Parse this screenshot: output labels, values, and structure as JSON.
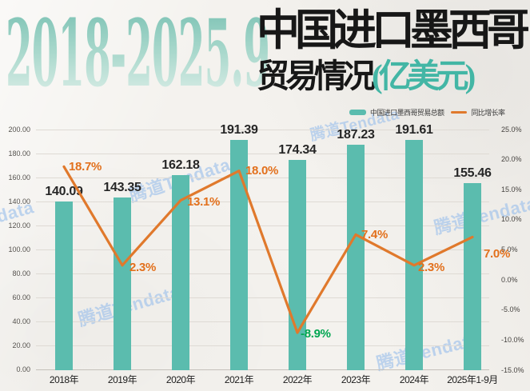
{
  "title": {
    "years": "2018-2025.9",
    "main": "中国进口墨西哥",
    "sub": "贸易情况",
    "unit": "(亿美元)"
  },
  "legend": {
    "bar_label": "中国进口墨西哥贸易总额",
    "line_label": "同比增长率"
  },
  "watermark": {
    "text": "腾道Tendata"
  },
  "colors": {
    "bar": "#5bbcae",
    "line": "#e0792c",
    "pct_label": "#e2701c",
    "pct_negative": "#00a651",
    "title_unit": "#43b6a5",
    "watermark": "#9fc2ec",
    "gridline": "#dedad4",
    "axis_line": "#c4c0ba"
  },
  "chart_data": {
    "type": "bar+line combo",
    "title": "2018-2025.9 中国进口墨西哥贸易情况(亿美元)",
    "categories": [
      "2018年",
      "2019年",
      "2020年",
      "2021年",
      "2022年",
      "2023年",
      "2024年",
      "2025年1-9月"
    ],
    "series": [
      {
        "name": "中国进口墨西哥贸易总额",
        "type": "bar",
        "values": [
          140.09,
          143.35,
          162.18,
          191.39,
          174.34,
          187.23,
          191.61,
          155.46
        ],
        "labels": [
          "140.09",
          "143.35",
          "162.18",
          "191.39",
          "174.34",
          "187.23",
          "191.61",
          "155.46"
        ]
      },
      {
        "name": "同比增长率",
        "type": "line",
        "values": [
          18.7,
          2.3,
          13.1,
          18.0,
          -8.9,
          7.4,
          2.3,
          7.0
        ],
        "labels": [
          "18.7%",
          "2.3%",
          "13.1%",
          "18.0%",
          "-8.9%",
          "7.4%",
          "2.3%",
          "7.0%"
        ]
      }
    ],
    "left_axis": {
      "range": [
        0,
        200
      ],
      "ticks": [
        "200.00",
        "180.00",
        "160.00",
        "140.00",
        "120.00",
        "100.00",
        "80.00",
        "60.00",
        "40.00",
        "20.00",
        "0.00"
      ]
    },
    "right_axis": {
      "range": [
        -15,
        25
      ],
      "ticks": [
        "25.0%",
        "20.0%",
        "15.0%",
        "10.0%",
        "5.0%",
        "0.0%",
        "-5.0%",
        "-10.0%",
        "-15.0%"
      ]
    },
    "grid": true,
    "legend_position": "top-right"
  }
}
